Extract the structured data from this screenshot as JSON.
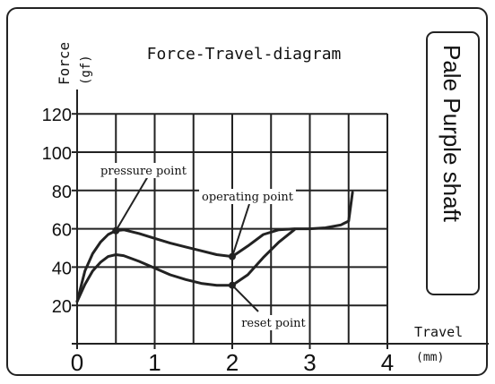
{
  "chart_data": {
    "type": "line",
    "title": "Force-Travel-diagram",
    "ylabel": "Force",
    "ylabel_unit": "(gf)",
    "xlabel": "Travel",
    "xlabel_unit": "(mm)",
    "side_label": "Pale Purple shaft",
    "xlim": [
      0,
      4
    ],
    "ylim": [
      0,
      120
    ],
    "x_ticks": [
      "0",
      "1",
      "2",
      "3",
      "4"
    ],
    "y_ticks": [
      "20",
      "40",
      "60",
      "80",
      "100",
      "120"
    ],
    "grid": true,
    "series": [
      {
        "x": [
          0,
          0.1,
          0.2,
          0.3,
          0.4,
          0.5,
          0.6,
          0.8,
          1.0,
          1.2,
          1.4,
          1.6,
          1.8,
          2.0,
          2.2,
          2.4,
          2.6,
          2.8,
          3.0,
          3.2,
          3.4,
          3.5,
          3.55
        ],
        "y": [
          22,
          38,
          47,
          53,
          57,
          59,
          59.5,
          57.5,
          55,
          52.5,
          50.5,
          48.5,
          46.5,
          45.5,
          51,
          57,
          59.5,
          60,
          60,
          60.5,
          62,
          64,
          79
        ]
      },
      {
        "x": [
          0,
          0.1,
          0.2,
          0.3,
          0.4,
          0.5,
          0.6,
          0.8,
          1.0,
          1.2,
          1.4,
          1.6,
          1.8,
          2.0,
          2.2,
          2.4,
          2.6,
          2.8
        ],
        "y": [
          22,
          31,
          38,
          42.5,
          45.5,
          46.5,
          46,
          43,
          39.5,
          36,
          33.5,
          31.5,
          30.5,
          30.5,
          36,
          45,
          53,
          59.5
        ]
      }
    ],
    "annotations": [
      {
        "text": "pressure point",
        "x": 0.5,
        "y": 59
      },
      {
        "text": "operating point",
        "x": 2.0,
        "y": 45.5
      },
      {
        "text": "reset point",
        "x": 2.0,
        "y": 30.5
      }
    ]
  }
}
